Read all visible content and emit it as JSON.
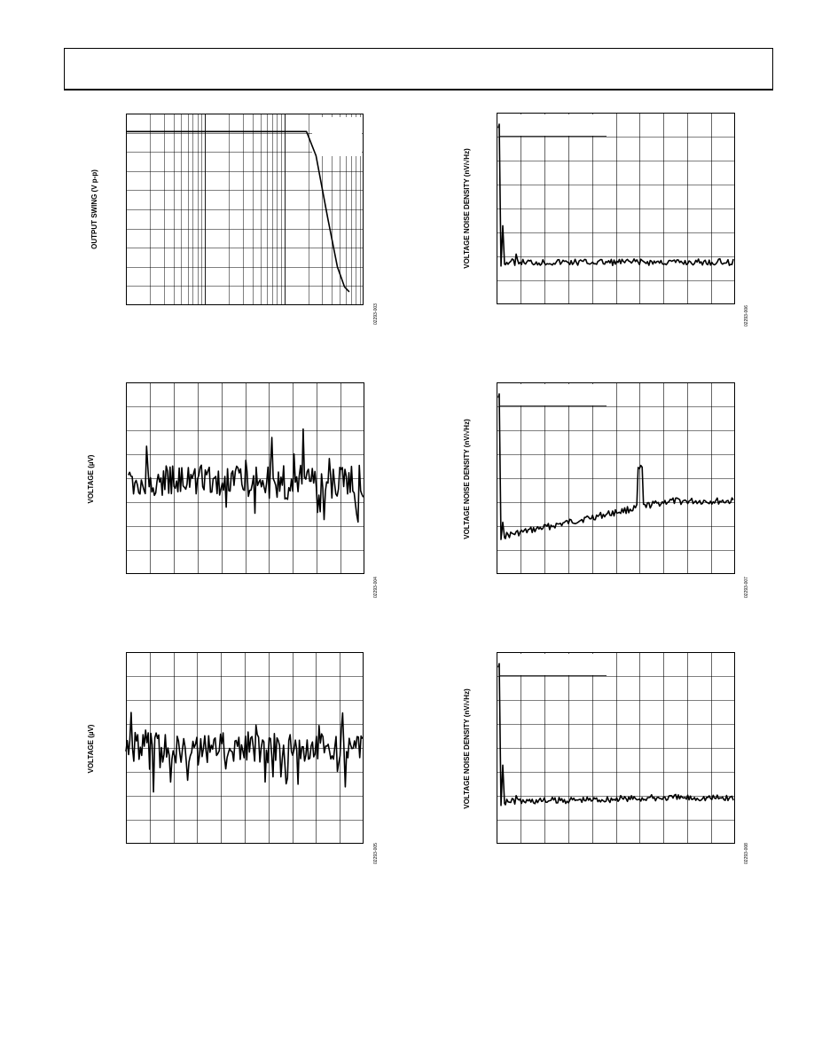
{
  "colors": {
    "ink": "#000000",
    "grid": "#000000",
    "background": "#ffffff"
  },
  "chart_data": [
    {
      "id": "c1",
      "type": "line",
      "title": "",
      "xlabel": "",
      "ylabel": "OUTPUT SWING (V p-p)",
      "x_scale": "log",
      "grid": true,
      "figure_code": "02293-003",
      "series": [
        {
          "values_note": "flat then roll-off",
          "points": [
            [
              0.0,
              0.094
            ],
            [
              0.76,
              0.094
            ],
            [
              0.8,
              0.22
            ],
            [
              0.85,
              0.55
            ],
            [
              0.89,
              0.8
            ],
            [
              0.92,
              0.905
            ],
            [
              0.94,
              0.93
            ]
          ]
        }
      ]
    },
    {
      "id": "c2",
      "type": "line",
      "title": "",
      "xlabel": "",
      "ylabel": "VOLTAGE (µV)",
      "grid": true,
      "figure_code": "02293-004",
      "series": [
        {
          "kind": "noise",
          "seed": 11,
          "base": 0.52,
          "amp": 0.09,
          "spikes": 0.22,
          "start": 0.01,
          "end": 0.995
        }
      ]
    },
    {
      "id": "c3",
      "type": "line",
      "title": "",
      "xlabel": "",
      "ylabel": "VOLTAGE (µV)",
      "grid": true,
      "figure_code": "02293-005",
      "series": [
        {
          "kind": "noise",
          "seed": 29,
          "base": 0.5,
          "amp": 0.08,
          "spikes": 0.19,
          "start": 0.0,
          "end": 0.995
        }
      ]
    },
    {
      "id": "c4",
      "type": "line",
      "title": "",
      "xlabel": "",
      "ylabel": "VOLTAGE NOISE DENSITY (nV/√Hz)",
      "grid": true,
      "figure_code": "02293-006",
      "legend_box": true,
      "series": [
        {
          "kind": "density",
          "seed": 5,
          "tail_start": 0.78,
          "tail_end": 0.78,
          "peak": 0.06,
          "bump": 0.0
        }
      ]
    },
    {
      "id": "c5",
      "type": "line",
      "title": "",
      "xlabel": "",
      "ylabel": "VOLTAGE NOISE DENSITY (nV/√Hz)",
      "grid": true,
      "figure_code": "02293-007",
      "legend_box": true,
      "series": [
        {
          "kind": "density",
          "seed": 17,
          "tail_start": 0.8,
          "tail_end": 0.62,
          "peak": 0.18,
          "bump": 1.0
        }
      ]
    },
    {
      "id": "c6",
      "type": "line",
      "title": "",
      "xlabel": "",
      "ylabel": "VOLTAGE NOISE DENSITY (nV/√Hz)",
      "grid": true,
      "figure_code": "02293-008",
      "legend_box": true,
      "series": [
        {
          "kind": "density",
          "seed": 41,
          "tail_start": 0.78,
          "tail_end": 0.76,
          "peak": 0.06,
          "bump": 0.0
        }
      ]
    }
  ]
}
